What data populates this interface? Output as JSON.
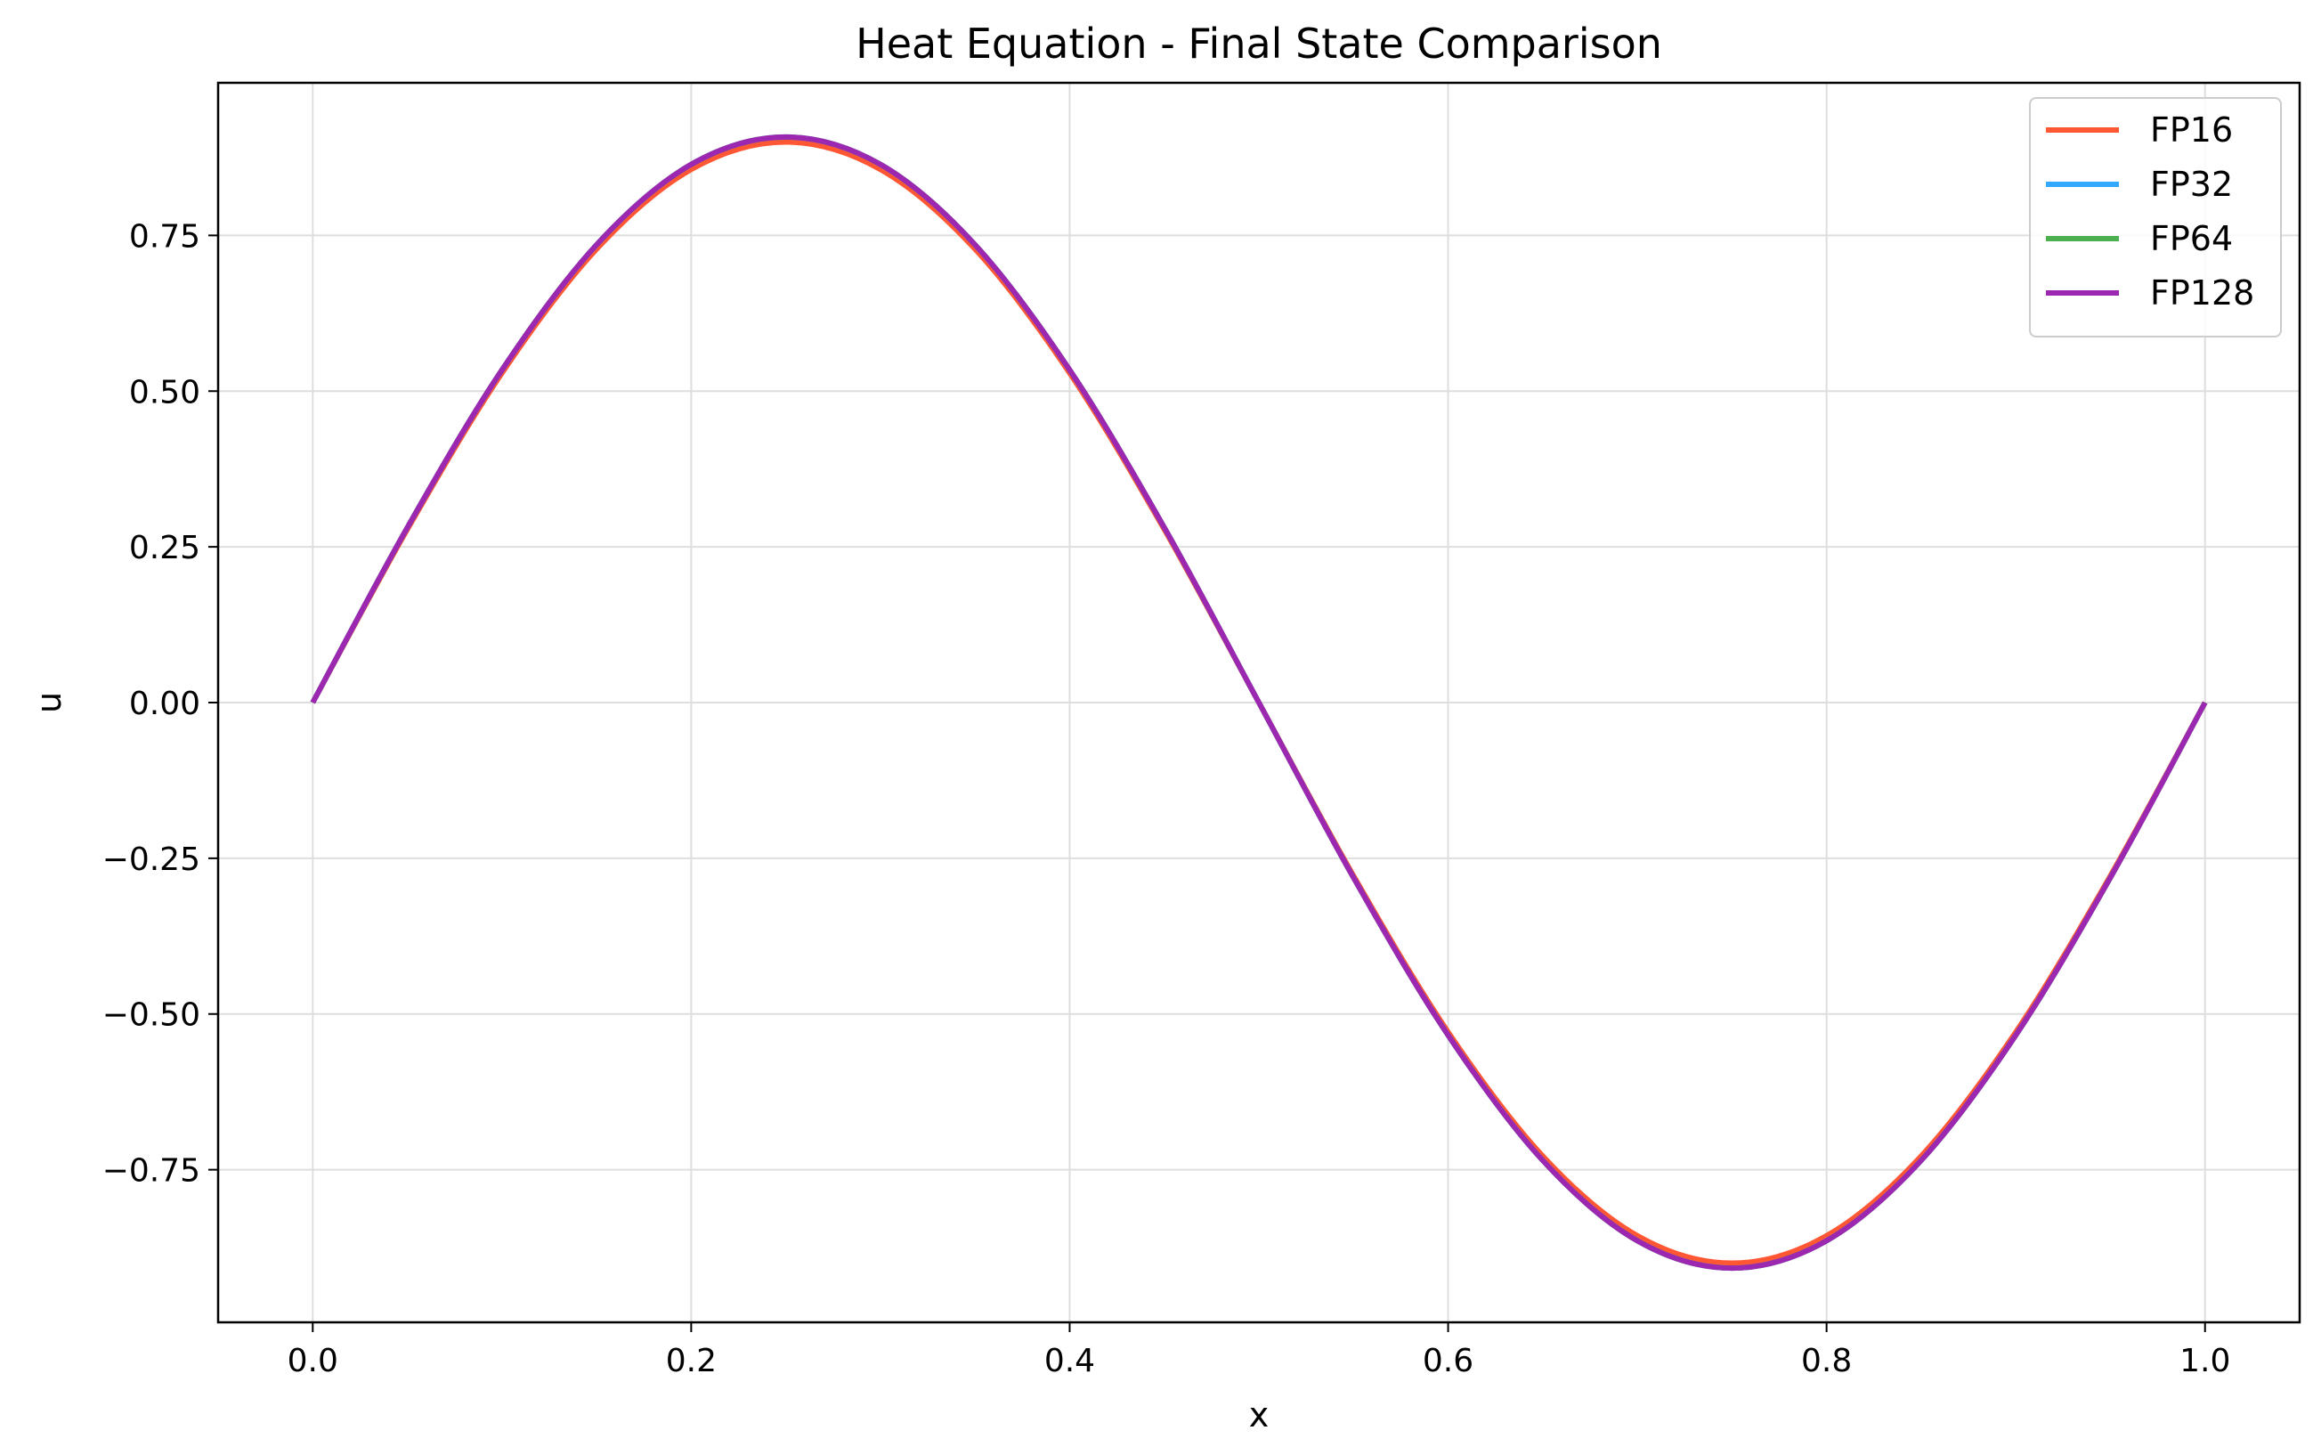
{
  "chart_data": {
    "type": "line",
    "title": "Heat Equation - Final State Comparison",
    "xlabel": "x",
    "ylabel": "u",
    "xlim": [
      -0.05,
      1.05
    ],
    "ylim": [
      -0.995,
      0.995
    ],
    "xticks": [
      0.0,
      0.2,
      0.4,
      0.6,
      0.8,
      1.0
    ],
    "xtick_labels": [
      "0.0",
      "0.2",
      "0.4",
      "0.6",
      "0.8",
      "1.0"
    ],
    "yticks": [
      -0.75,
      -0.5,
      -0.25,
      0.0,
      0.25,
      0.5,
      0.75
    ],
    "ytick_labels": [
      "−0.75",
      "−0.50",
      "−0.25",
      "0.00",
      "0.25",
      "0.50",
      "0.75"
    ],
    "grid": true,
    "legend_position": "top-right",
    "x": [
      0.0,
      0.05,
      0.1,
      0.15,
      0.2,
      0.25,
      0.3,
      0.35,
      0.4,
      0.45,
      0.5,
      0.55,
      0.6,
      0.65,
      0.7,
      0.75,
      0.8,
      0.85,
      0.9,
      0.95,
      1.0
    ],
    "series": [
      {
        "name": "FP16",
        "color": "#ff5733",
        "values": [
          0.0,
          0.278,
          0.529,
          0.728,
          0.856,
          0.9,
          0.856,
          0.728,
          0.529,
          0.278,
          0.0,
          -0.278,
          -0.529,
          -0.728,
          -0.856,
          -0.9,
          -0.856,
          -0.728,
          -0.529,
          -0.278,
          0.0
        ]
      },
      {
        "name": "FP32",
        "color": "#33a8ff",
        "values": [
          0.0,
          0.281,
          0.534,
          0.735,
          0.864,
          0.908,
          0.864,
          0.735,
          0.534,
          0.281,
          0.0,
          -0.281,
          -0.534,
          -0.735,
          -0.864,
          -0.908,
          -0.864,
          -0.735,
          -0.534,
          -0.281,
          0.0
        ]
      },
      {
        "name": "FP64",
        "color": "#4caf50",
        "values": [
          0.0,
          0.281,
          0.534,
          0.735,
          0.864,
          0.908,
          0.864,
          0.735,
          0.534,
          0.281,
          0.0,
          -0.281,
          -0.534,
          -0.735,
          -0.864,
          -0.908,
          -0.864,
          -0.735,
          -0.534,
          -0.281,
          0.0
        ]
      },
      {
        "name": "FP128",
        "color": "#9c27b0",
        "values": [
          0.0,
          0.281,
          0.534,
          0.735,
          0.864,
          0.908,
          0.864,
          0.735,
          0.534,
          0.281,
          0.0,
          -0.281,
          -0.534,
          -0.735,
          -0.864,
          -0.908,
          -0.864,
          -0.735,
          -0.534,
          -0.281,
          0.0
        ]
      }
    ]
  }
}
